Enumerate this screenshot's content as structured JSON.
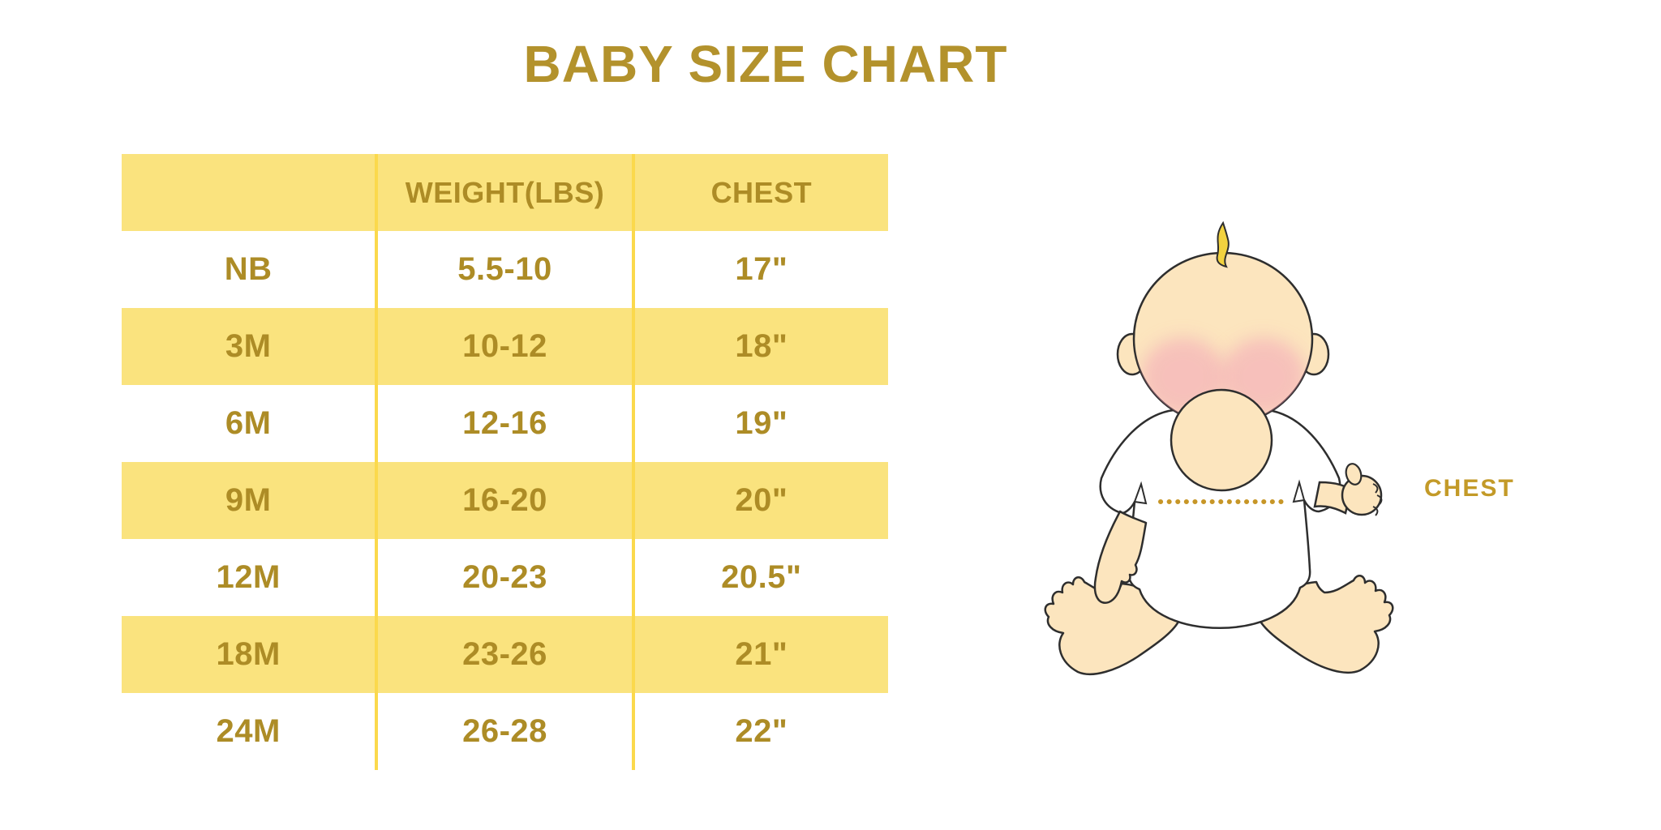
{
  "title": "BABY SIZE CHART",
  "table": {
    "headers": [
      "",
      "WEIGHT(LBS)",
      "CHEST"
    ],
    "rows": [
      {
        "size": "NB",
        "weight": "5.5-10",
        "chest": "17\""
      },
      {
        "size": "3M",
        "weight": "10-12",
        "chest": "18\""
      },
      {
        "size": "6M",
        "weight": "12-16",
        "chest": "19\""
      },
      {
        "size": "9M",
        "weight": "16-20",
        "chest": "20\""
      },
      {
        "size": "12M",
        "weight": "20-23",
        "chest": "20.5\""
      },
      {
        "size": "18M",
        "weight": "23-26",
        "chest": "21\""
      },
      {
        "size": "24M",
        "weight": "26-28",
        "chest": "22\""
      }
    ]
  },
  "illustration": {
    "chest_label": "CHEST"
  },
  "colors": {
    "title_gold": "#B3922C",
    "table_text_gold": "#AD8C26",
    "row_yellow": "#FAE37E",
    "divider_yellow": "#FBD94C",
    "chest_label_gold": "#C39A28",
    "baby_skin": "#FCE5BE",
    "baby_outline": "#2E2E2E",
    "blush_pink": "#F29CB7",
    "hair_yellow": "#F2D23F",
    "dotted_line_gold": "#C79627"
  },
  "chart_data": {
    "type": "table",
    "title": "BABY SIZE CHART",
    "columns": [
      "",
      "WEIGHT(LBS)",
      "CHEST"
    ],
    "rows": [
      [
        "NB",
        "5.5-10",
        "17\""
      ],
      [
        "3M",
        "10-12",
        "18\""
      ],
      [
        "6M",
        "12-16",
        "19\""
      ],
      [
        "9M",
        "16-20",
        "20\""
      ],
      [
        "12M",
        "20-23",
        "20.5\""
      ],
      [
        "18M",
        "23-26",
        "21\""
      ],
      [
        "24M",
        "26-28",
        "22\""
      ]
    ]
  }
}
